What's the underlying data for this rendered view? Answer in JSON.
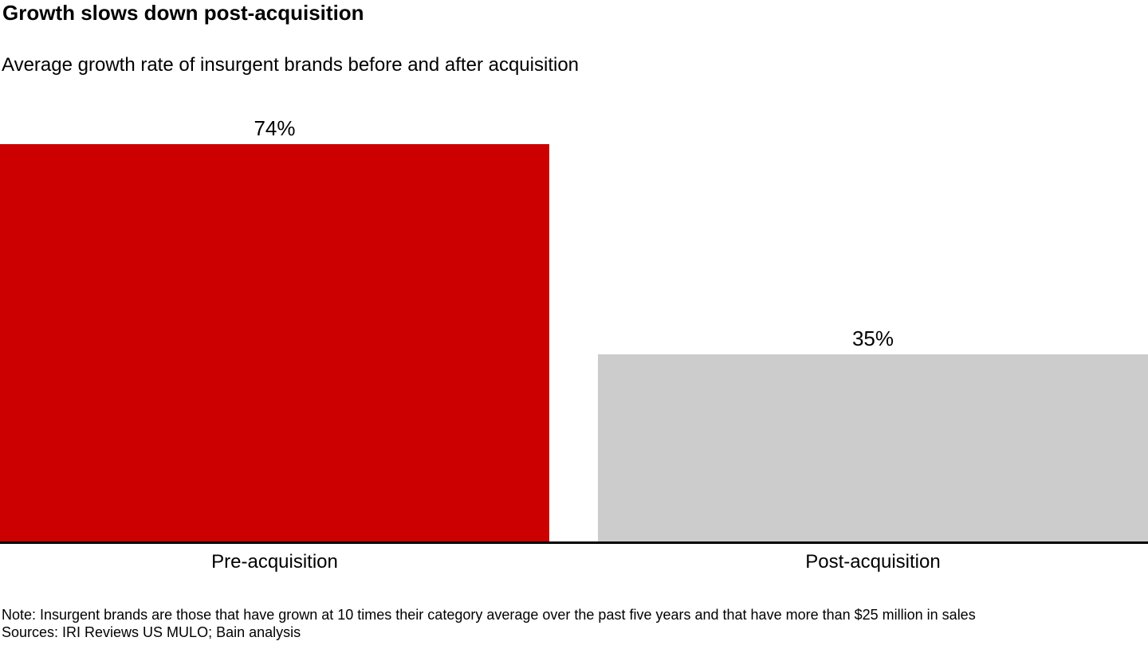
{
  "chart_data": {
    "type": "bar",
    "title": "Growth slows down post-acquisition",
    "subtitle": "Average growth rate of insurgent brands before and after acquisition",
    "categories": [
      "Pre-acquisition",
      "Post-acquisition"
    ],
    "values": [
      74,
      35
    ],
    "value_labels": [
      "74%",
      "35%"
    ],
    "colors": [
      "#cc0000",
      "#cccccc"
    ],
    "axis_color": "#000000",
    "ylabel": "",
    "xlabel": "",
    "ylim": [
      0,
      74
    ],
    "grid": false,
    "legend": false,
    "data_labels_position": "above-bar",
    "category_labels_position": "below-axis"
  },
  "notes": {
    "note": "Note: Insurgent brands are those that have grown at 10 times their category average over the past five years and that have more than $25 million in sales",
    "sources": "Sources: IRI Reviews US MULO; Bain analysis"
  }
}
